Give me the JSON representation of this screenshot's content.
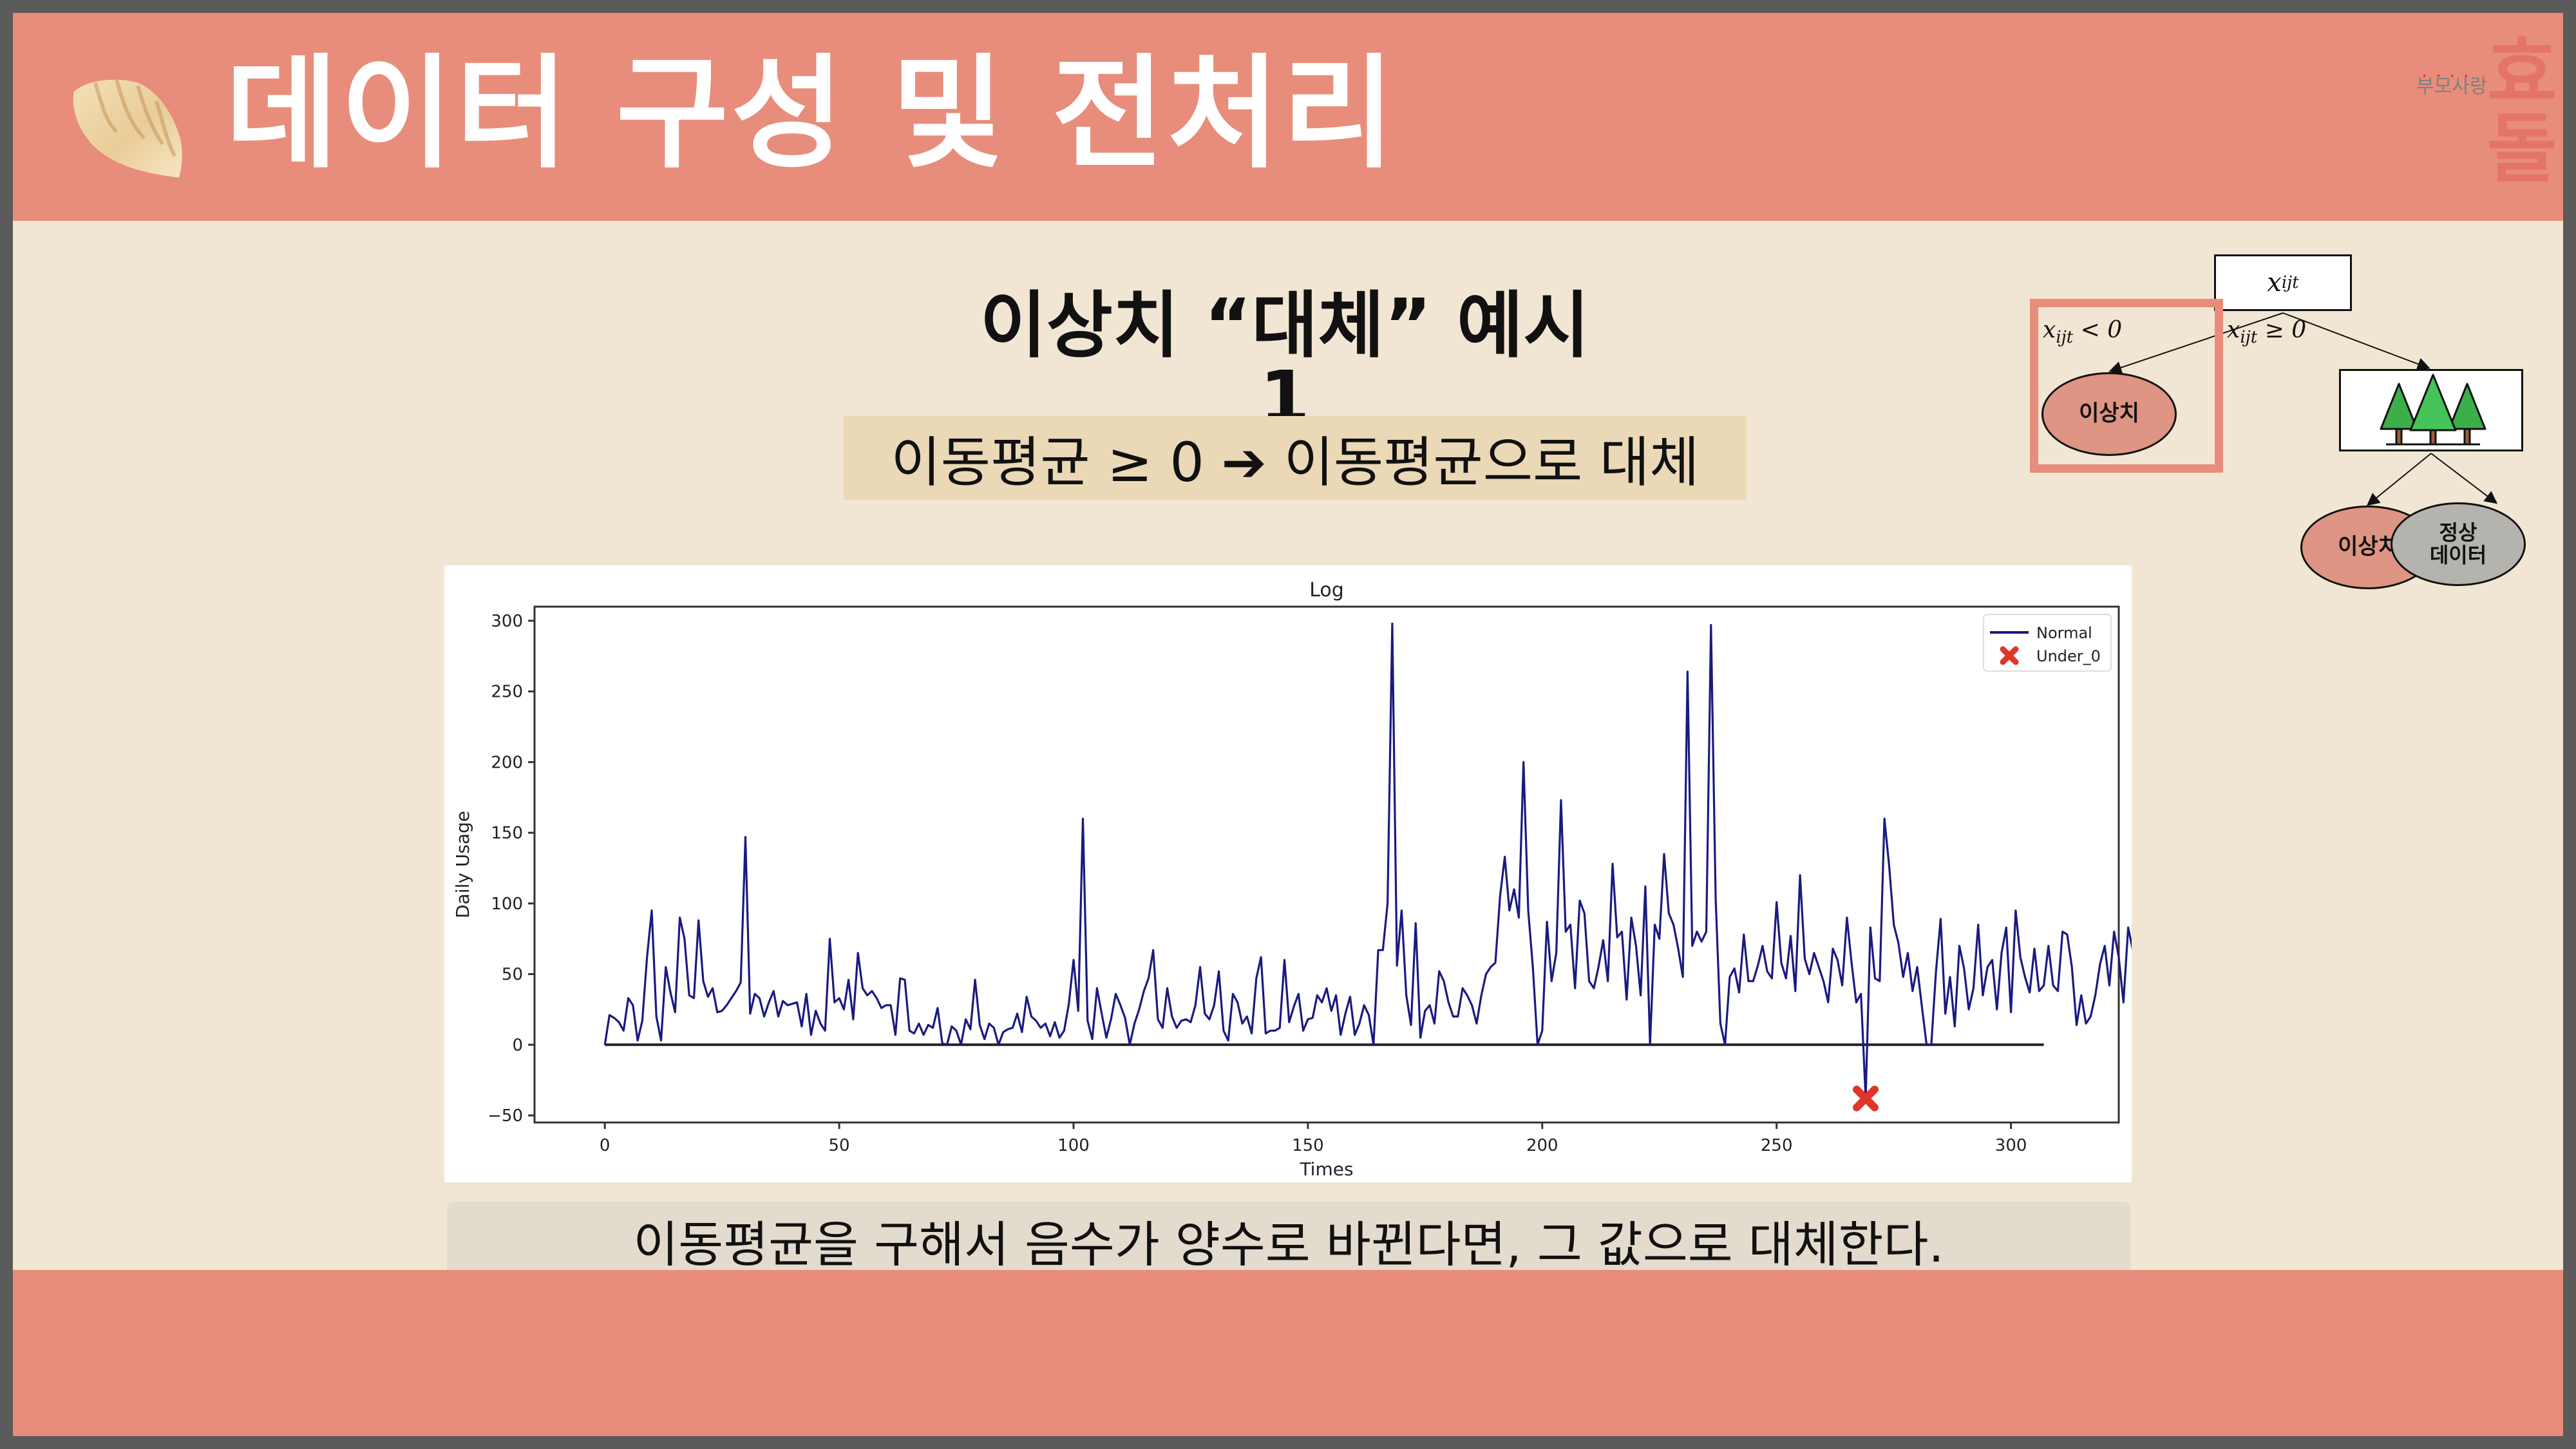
{
  "header": {
    "title": "데이터 구성 및 전처리",
    "icon": "dumpling-icon",
    "logo": {
      "dots": "····",
      "small_text": "부모사랑",
      "big_text": "효돌"
    }
  },
  "colors": {
    "header_bg": "#e88d7b",
    "slide_bg": "#f1e6d3",
    "rule_box_bg": "#ead8b7",
    "caption_box_bg": "#e3dbcd",
    "line_series": "#1a1a80",
    "marker": "#e0352b",
    "outlier_node": "#de9583",
    "normal_node": "#b5b3ae"
  },
  "main": {
    "subtitle": "이상치 “대체” 예시1",
    "rule": "이동평균 ≥ 0 ➔ 이동평균으로 대체",
    "caption": "이동평균을 구해서 음수가 양수로 바뀐다면, 그 값으로 대체한다."
  },
  "tree": {
    "root": "x",
    "root_sub": "ijt",
    "cond_left": "x",
    "cond_left_sub": "ijt",
    "cond_left_op": " < 0",
    "cond_right": "x",
    "cond_right_sub": "ijt",
    "cond_right_op": " ≥ 0",
    "left_leaf": "이상치",
    "forest_icon": "forest-icon",
    "child_left": "이상치",
    "child_right_line1": "정상",
    "child_right_line2": "데이터"
  },
  "chart_data": {
    "type": "line",
    "title": "Log",
    "xlabel": "Times",
    "ylabel": "Daily Usage",
    "xlim": [
      -15,
      323
    ],
    "ylim": [
      -55,
      310
    ],
    "xticks": [
      0,
      50,
      100,
      150,
      200,
      250,
      300
    ],
    "yticks": [
      -50,
      0,
      50,
      100,
      150,
      200,
      250,
      300
    ],
    "grid": false,
    "legend": {
      "position": "upper right",
      "entries": [
        "Normal",
        "Under_0"
      ]
    },
    "series": [
      {
        "name": "Normal",
        "style": "line",
        "color": "#1a1a80",
        "x_start": 0,
        "x_step": 1,
        "values": [
          0,
          21,
          19,
          16,
          10,
          33,
          28,
          3,
          17,
          62,
          95,
          20,
          3,
          55,
          37,
          23,
          90,
          75,
          35,
          33,
          88,
          45,
          34,
          40,
          23,
          24,
          28,
          33,
          38,
          44,
          147,
          22,
          36,
          33,
          20,
          30,
          38,
          20,
          31,
          28,
          29,
          30,
          13,
          36,
          7,
          24,
          15,
          10,
          75,
          30,
          33,
          25,
          46,
          18,
          65,
          40,
          35,
          38,
          33,
          26,
          28,
          28,
          7,
          47,
          46,
          10,
          8,
          15,
          7,
          14,
          12,
          26,
          1,
          0,
          13,
          10,
          0,
          18,
          11,
          46,
          14,
          4,
          15,
          12,
          0,
          9,
          11,
          12,
          22,
          9,
          34,
          20,
          17,
          12,
          15,
          6,
          16,
          5,
          10,
          29,
          60,
          24,
          160,
          17,
          4,
          40,
          22,
          5,
          18,
          36,
          28,
          19,
          0,
          15,
          25,
          38,
          47,
          67,
          18,
          12,
          40,
          20,
          12,
          17,
          18,
          16,
          28,
          55,
          22,
          18,
          28,
          52,
          10,
          3,
          36,
          30,
          15,
          20,
          8,
          47,
          62,
          8,
          10,
          10,
          12,
          60,
          16,
          27,
          36,
          10,
          18,
          19,
          35,
          30,
          40,
          24,
          35,
          7,
          22,
          34,
          7,
          15,
          28,
          21,
          0,
          67,
          67,
          100,
          298,
          56,
          95,
          35,
          14,
          86,
          5,
          24,
          28,
          15,
          52,
          45,
          30,
          20,
          20,
          40,
          35,
          28,
          15,
          35,
          50,
          55,
          58,
          105,
          133,
          95,
          110,
          90,
          200,
          95,
          55,
          0,
          10,
          87,
          45,
          65,
          173,
          80,
          85,
          40,
          102,
          93,
          45,
          40,
          55,
          74,
          45,
          128,
          76,
          80,
          32,
          90,
          70,
          35,
          112,
          0,
          85,
          75,
          135,
          93,
          85,
          68,
          48,
          264,
          70,
          80,
          73,
          80,
          297,
          103,
          15,
          0,
          48,
          54,
          37,
          78,
          45,
          45,
          56,
          70,
          52,
          47,
          101,
          58,
          47,
          77,
          38,
          120,
          61,
          50,
          65,
          55,
          45,
          30,
          68,
          60,
          42,
          90,
          58,
          30,
          36,
          105,
          83,
          47,
          45,
          160,
          127,
          85,
          72,
          48,
          65,
          38,
          55,
          27,
          0,
          0,
          52,
          89,
          22,
          48,
          13,
          70,
          54,
          25,
          40,
          85,
          35,
          55,
          60,
          25,
          65,
          83,
          23,
          95,
          62,
          48,
          37,
          68,
          38,
          42,
          70,
          42,
          38,
          80,
          78,
          55,
          14,
          35,
          15,
          20,
          35,
          57,
          70,
          42,
          80,
          62,
          30,
          83,
          67,
          55
        ]
      },
      {
        "name": "Under_0",
        "style": "marker-x",
        "color": "#e0352b",
        "points": [
          {
            "x": 269,
            "y": -38
          }
        ]
      }
    ],
    "reference_line": {
      "y": 0,
      "x_range": [
        0,
        307
      ],
      "color": "#222222"
    }
  }
}
